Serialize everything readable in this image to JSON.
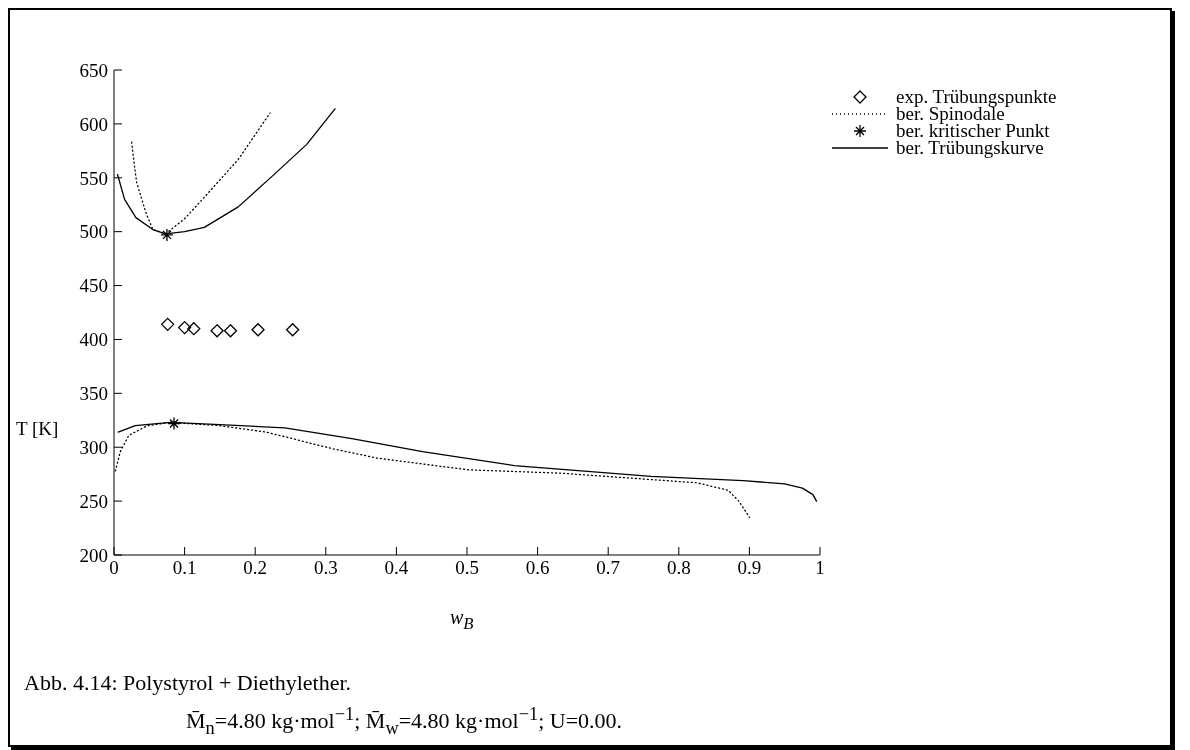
{
  "chart_data": {
    "type": "line",
    "xlabel": "w$_{B}$",
    "ylabel": "T [K]",
    "xlim": [
      0,
      1
    ],
    "xticks": [
      0,
      0.1,
      0.2,
      0.3,
      0.4,
      0.5,
      0.6,
      0.7,
      0.8,
      0.9,
      1
    ],
    "ylim": [
      200,
      650
    ],
    "yticks": [
      200,
      250,
      300,
      350,
      400,
      450,
      500,
      550,
      600,
      650
    ],
    "grid": false,
    "legend": "top right",
    "annotations": [
      "Abb. 4.14: Polystyrol + Diethylether.",
      "M̄$_{n}$=4.80 kg·mol$^{−1}$; M̄$_{w}$=4.80 kg·mol$^{−1}$; U=0.00."
    ],
    "series": [
      {
        "name": "exp. Trübungspunkte",
        "type": "scatter",
        "marker": "diamond",
        "color": "#000000",
        "x": [
          0.076,
          0.1,
          0.113,
          0.146,
          0.165,
          0.204,
          0.253
        ],
        "values": [
          414,
          411,
          410,
          408,
          408,
          409,
          409
        ]
      },
      {
        "name": "ber. Spinodale",
        "line_style": "dotted",
        "marker": "none",
        "color": "#000000",
        "x": [
          0.025,
          0.029,
          0.032,
          0.045,
          0.055,
          0.073,
          0.1,
          0.128,
          0.176,
          0.221
        ],
        "values": [
          583,
          561,
          546,
          518,
          502,
          498,
          512,
          532,
          567,
          610
        ]
      },
      {
        "name": null,
        "line_style": "dotted",
        "marker": "none",
        "color": "#000000",
        "x": [
          0.002,
          0.009,
          0.021,
          0.047,
          0.08,
          0.15,
          0.216,
          0.307,
          0.372,
          0.502,
          0.631,
          0.826,
          0.87,
          0.885,
          0.9
        ],
        "values": [
          278,
          296,
          311,
          320,
          323,
          320,
          314,
          299,
          290,
          279,
          276,
          267,
          260,
          250,
          235
        ]
      },
      {
        "name": "ber. kritischer Punkt",
        "type": "scatter",
        "marker": "cross",
        "color": "#000000",
        "x": [
          0.075,
          0.085
        ],
        "values": [
          497,
          322
        ]
      },
      {
        "name": "ber. Trübungskurve",
        "line_style": "solid",
        "marker": "none",
        "color": "#000000",
        "x": [
          0.005,
          0.015,
          0.031,
          0.055,
          0.073,
          0.1,
          0.128,
          0.176,
          0.225,
          0.273,
          0.313
        ],
        "values": [
          553,
          530,
          513,
          502,
          498,
          500,
          504,
          523,
          552,
          581,
          614
        ]
      },
      {
        "name": null,
        "line_style": "solid",
        "marker": "none",
        "color": "#000000",
        "x": [
          0.006,
          0.03,
          0.08,
          0.15,
          0.242,
          0.337,
          0.437,
          0.567,
          0.761,
          0.891,
          0.95,
          0.975,
          0.99,
          0.995
        ],
        "values": [
          314,
          320,
          323,
          321,
          318,
          308,
          296,
          283,
          273,
          269,
          266,
          262,
          256,
          250
        ]
      }
    ]
  }
}
